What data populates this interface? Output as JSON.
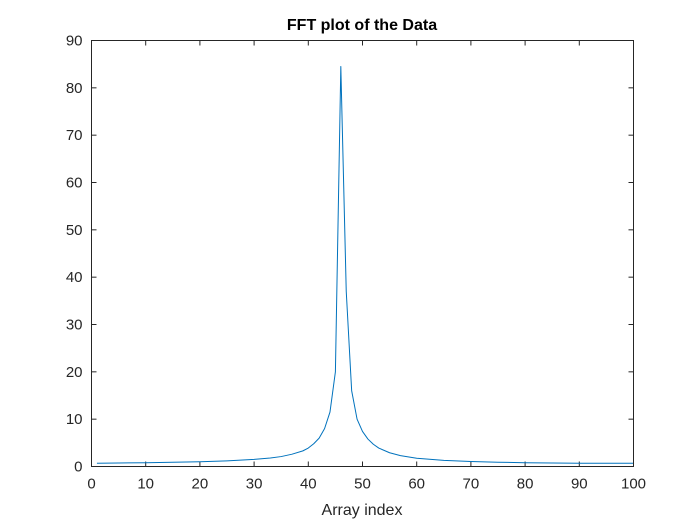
{
  "chart_data": {
    "type": "line",
    "title": "FFT plot of the Data",
    "xlabel": "Array index",
    "ylabel": "",
    "xlim": [
      0,
      100
    ],
    "ylim": [
      0,
      90
    ],
    "xticks": [
      0,
      10,
      20,
      30,
      40,
      50,
      60,
      70,
      80,
      90,
      100
    ],
    "yticks": [
      0,
      10,
      20,
      30,
      40,
      50,
      60,
      70,
      80,
      90
    ],
    "grid": false,
    "box": true,
    "line_color": "#0072BD",
    "axis_color": "#262626",
    "series": [
      {
        "x": [
          1,
          5,
          10,
          15,
          20,
          25,
          30,
          33,
          35,
          37,
          39,
          40,
          41,
          42,
          43,
          44,
          45,
          46,
          47,
          48,
          49,
          50,
          51,
          52,
          53,
          55,
          57,
          60,
          65,
          70,
          75,
          80,
          85,
          90,
          95,
          100
        ],
        "y": [
          0.7,
          0.75,
          0.8,
          0.9,
          1.0,
          1.2,
          1.5,
          1.8,
          2.1,
          2.6,
          3.3,
          3.9,
          4.8,
          6.0,
          8.0,
          11.5,
          20.0,
          84.5,
          37.0,
          16.0,
          10.0,
          7.4,
          5.8,
          4.7,
          3.9,
          2.9,
          2.3,
          1.75,
          1.3,
          1.05,
          0.9,
          0.8,
          0.75,
          0.7,
          0.7,
          0.7
        ]
      }
    ]
  }
}
